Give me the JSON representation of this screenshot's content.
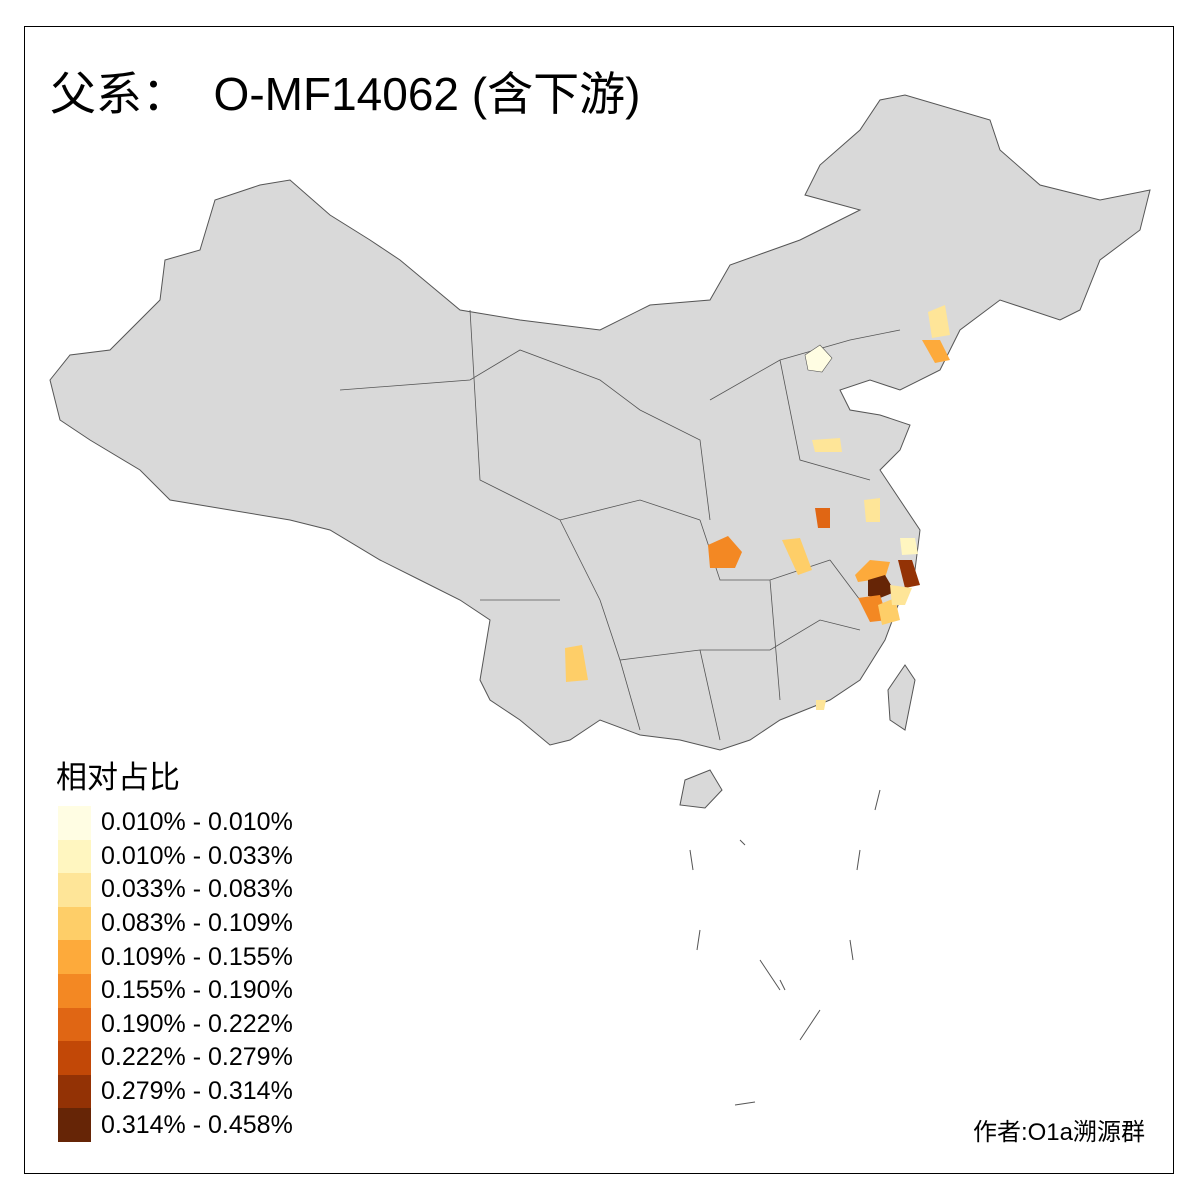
{
  "title": "父系：  O-MF14062 (含下游)",
  "legend": {
    "title": "相对占比",
    "items": [
      {
        "label": "0.010% - 0.010%",
        "color": "#FFFDE3"
      },
      {
        "label": "0.010% - 0.033%",
        "color": "#FFF6C0"
      },
      {
        "label": "0.033% - 0.083%",
        "color": "#FEE598"
      },
      {
        "label": "0.083% - 0.109%",
        "color": "#FECE68"
      },
      {
        "label": "0.109% - 0.155%",
        "color": "#FDAA3B"
      },
      {
        "label": "0.155% - 0.190%",
        "color": "#F38823"
      },
      {
        "label": "0.190% - 0.222%",
        "color": "#E06614"
      },
      {
        "label": "0.222% - 0.279%",
        "color": "#C24807"
      },
      {
        "label": "0.279% - 0.314%",
        "color": "#933205"
      },
      {
        "label": "0.314% - 0.458%",
        "color": "#662506"
      }
    ]
  },
  "map": {
    "base_color": "#D9D9D9",
    "border_color": "#555555"
  },
  "author": "作者:O1a溯源群"
}
